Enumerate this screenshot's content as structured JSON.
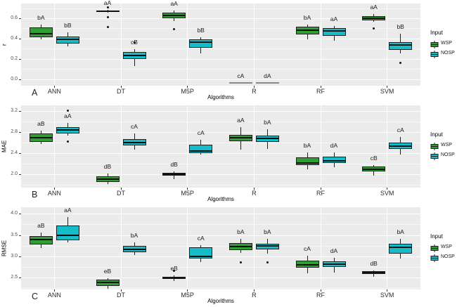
{
  "chart_data": {
    "type": "boxplot",
    "x_axis_title": "Algorithms",
    "categories": [
      "ANN",
      "DT",
      "M5P",
      "R",
      "RF",
      "SVM"
    ],
    "legend": {
      "title": "Input",
      "items": [
        {
          "label": "WSP",
          "color": "#2f9e33"
        },
        {
          "label": "NOSP",
          "color": "#16bdc8"
        }
      ]
    },
    "colors": {
      "wsp": "#2f9e33",
      "nosp": "#16bdc8",
      "na_gray": "#8a8a8a",
      "panel_bg": "#ebebeb"
    },
    "panels": [
      {
        "panel_letter": "A",
        "ylabel": "r",
        "ylim": [
          -0.065,
          0.745
        ],
        "yticks": [
          {
            "label": "0.0",
            "v": 0.0
          },
          {
            "label": "0.2",
            "v": 0.2
          },
          {
            "label": "0.4",
            "v": 0.4
          },
          {
            "label": "0.6",
            "v": 0.6
          }
        ],
        "groups": [
          {
            "category": "ANN",
            "wsp": {
              "low": 0.39,
              "q1": 0.41,
              "median": 0.45,
              "q3": 0.51,
              "high": 0.54,
              "outliers": [],
              "label": "bA"
            },
            "nosp": {
              "low": 0.32,
              "q1": 0.35,
              "median": 0.39,
              "q3": 0.42,
              "high": 0.46,
              "outliers": [],
              "label": "bB"
            }
          },
          {
            "category": "DT",
            "wsp": {
              "low": 0.655,
              "q1": 0.66,
              "median": 0.67,
              "q3": 0.678,
              "high": 0.683,
              "outliers": [
                0.71,
                0.61,
                0.51
              ],
              "label": "aA"
            },
            "nosp": {
              "low": 0.13,
              "q1": 0.2,
              "median": 0.235,
              "q3": 0.27,
              "high": 0.295,
              "outliers": [
                0.36
              ],
              "label": "cB"
            }
          },
          {
            "category": "M5P",
            "wsp": {
              "low": 0.575,
              "q1": 0.598,
              "median": 0.628,
              "q3": 0.652,
              "high": 0.678,
              "outliers": [
                0.49
              ],
              "label": "aA"
            },
            "nosp": {
              "low": 0.255,
              "q1": 0.31,
              "median": 0.365,
              "q3": 0.39,
              "high": 0.415,
              "outliers": [],
              "label": "bB"
            }
          },
          {
            "category": "R",
            "wsp": {
              "na": true,
              "value": -0.04,
              "label": "cA"
            },
            "nosp": {
              "na": true,
              "value": -0.04,
              "label": "dA"
            }
          },
          {
            "category": "RF",
            "wsp": {
              "low": 0.39,
              "q1": 0.44,
              "median": 0.48,
              "q3": 0.515,
              "high": 0.538,
              "outliers": [],
              "label": "bA"
            },
            "nosp": {
              "low": 0.377,
              "q1": 0.428,
              "median": 0.474,
              "q3": 0.503,
              "high": 0.526,
              "outliers": [],
              "label": "aA"
            }
          },
          {
            "category": "SVM",
            "wsp": {
              "low": 0.565,
              "q1": 0.578,
              "median": 0.597,
              "q3": 0.618,
              "high": 0.64,
              "outliers": [
                0.5
              ],
              "label": "aA"
            },
            "nosp": {
              "low": 0.25,
              "q1": 0.288,
              "median": 0.337,
              "q3": 0.366,
              "high": 0.447,
              "outliers": [
                0.16
              ],
              "label": "bB"
            }
          }
        ]
      },
      {
        "panel_letter": "B",
        "ylabel": "MAE",
        "ylim": [
          1.747,
          3.307
        ],
        "yticks": [
          {
            "label": "2.0",
            "v": 2.0
          },
          {
            "label": "2.4",
            "v": 2.4
          },
          {
            "label": "2.8",
            "v": 2.8
          },
          {
            "label": "3.2",
            "v": 3.2
          }
        ],
        "groups": [
          {
            "category": "ANN",
            "wsp": {
              "low": 2.58,
              "q1": 2.62,
              "median": 2.69,
              "q3": 2.77,
              "high": 2.83,
              "outliers": [],
              "label": "aB"
            },
            "nosp": {
              "low": 2.74,
              "q1": 2.78,
              "median": 2.84,
              "q3": 2.9,
              "high": 2.98,
              "outliers": [
                3.21,
                2.62
              ],
              "label": "aA"
            }
          },
          {
            "category": "DT",
            "wsp": {
              "low": 1.82,
              "q1": 1.85,
              "median": 1.91,
              "q3": 1.96,
              "high": 2.02,
              "outliers": [],
              "label": "dB"
            },
            "nosp": {
              "low": 2.47,
              "q1": 2.55,
              "median": 2.6,
              "q3": 2.67,
              "high": 2.78,
              "outliers": [],
              "label": "cA"
            }
          },
          {
            "category": "M5P",
            "wsp": {
              "low": 1.91,
              "q1": 1.97,
              "median": 2.0,
              "q3": 2.03,
              "high": 2.06,
              "outliers": [],
              "label": "dB"
            },
            "nosp": {
              "low": 2.37,
              "q1": 2.4,
              "median": 2.44,
              "q3": 2.56,
              "high": 2.66,
              "outliers": [],
              "label": "cA"
            }
          },
          {
            "category": "R",
            "wsp": {
              "low": 2.47,
              "q1": 2.63,
              "median": 2.69,
              "q3": 2.75,
              "high": 2.89,
              "outliers": [],
              "label": "aA"
            },
            "nosp": {
              "low": 2.48,
              "q1": 2.62,
              "median": 2.68,
              "q3": 2.73,
              "high": 2.86,
              "outliers": [],
              "label": "bA"
            }
          },
          {
            "category": "RF",
            "wsp": {
              "low": 2.1,
              "q1": 2.18,
              "median": 2.22,
              "q3": 2.32,
              "high": 2.42,
              "outliers": [],
              "label": "bA"
            },
            "nosp": {
              "low": 2.13,
              "q1": 2.22,
              "median": 2.26,
              "q3": 2.33,
              "high": 2.42,
              "outliers": [],
              "label": "dA"
            }
          },
          {
            "category": "SVM",
            "wsp": {
              "low": 1.97,
              "q1": 2.06,
              "median": 2.1,
              "q3": 2.15,
              "high": 2.18,
              "outliers": [],
              "label": "cB"
            },
            "nosp": {
              "low": 2.37,
              "q1": 2.48,
              "median": 2.54,
              "q3": 2.6,
              "high": 2.71,
              "outliers": [],
              "label": "cA"
            }
          }
        ]
      },
      {
        "panel_letter": "C",
        "ylabel": "RMSE",
        "ylim": [
          2.217,
          4.154
        ],
        "yticks": [
          {
            "label": "2.5",
            "v": 2.5
          },
          {
            "label": "3.0",
            "v": 3.0
          },
          {
            "label": "3.5",
            "v": 3.5
          },
          {
            "label": "4.0",
            "v": 4.0
          }
        ],
        "groups": [
          {
            "category": "ANN",
            "wsp": {
              "low": 3.2,
              "q1": 3.27,
              "median": 3.4,
              "q3": 3.48,
              "high": 3.55,
              "outliers": [],
              "label": "aB"
            },
            "nosp": {
              "low": 3.32,
              "q1": 3.38,
              "median": 3.5,
              "q3": 3.72,
              "high": 3.92,
              "outliers": [],
              "label": "aA"
            }
          },
          {
            "category": "DT",
            "wsp": {
              "low": 2.23,
              "q1": 2.3,
              "median": 2.38,
              "q3": 2.45,
              "high": 2.49,
              "outliers": [],
              "label": "eB"
            },
            "nosp": {
              "low": 3.02,
              "q1": 3.1,
              "median": 3.16,
              "q3": 3.25,
              "high": 3.32,
              "outliers": [],
              "label": "bA"
            }
          },
          {
            "category": "M5P",
            "wsp": {
              "low": 2.42,
              "q1": 2.46,
              "median": 2.49,
              "q3": 2.52,
              "high": 2.54,
              "outliers": [
                2.65
              ],
              "label": "eB"
            },
            "nosp": {
              "low": 2.87,
              "q1": 2.95,
              "median": 3.0,
              "q3": 3.21,
              "high": 3.26,
              "outliers": [],
              "label": "cA"
            }
          },
          {
            "category": "R",
            "wsp": {
              "low": 3.08,
              "q1": 3.14,
              "median": 3.23,
              "q3": 3.31,
              "high": 3.41,
              "outliers": [
                2.86
              ],
              "label": "bA"
            },
            "nosp": {
              "low": 3.06,
              "q1": 3.16,
              "median": 3.24,
              "q3": 3.29,
              "high": 3.41,
              "outliers": [
                2.86
              ],
              "label": "bA"
            }
          },
          {
            "category": "RF",
            "wsp": {
              "low": 2.6,
              "q1": 2.73,
              "median": 2.79,
              "q3": 2.89,
              "high": 3.01,
              "outliers": [],
              "label": "cA"
            },
            "nosp": {
              "low": 2.62,
              "q1": 2.75,
              "median": 2.81,
              "q3": 2.88,
              "high": 2.97,
              "outliers": [],
              "label": "dA"
            }
          },
          {
            "category": "SVM",
            "wsp": {
              "low": 2.52,
              "q1": 2.58,
              "median": 2.61,
              "q3": 2.64,
              "high": 2.66,
              "outliers": [],
              "label": "dB"
            },
            "nosp": {
              "low": 2.94,
              "q1": 3.06,
              "median": 3.21,
              "q3": 3.29,
              "high": 3.41,
              "outliers": [],
              "label": "bA"
            }
          }
        ]
      }
    ]
  }
}
